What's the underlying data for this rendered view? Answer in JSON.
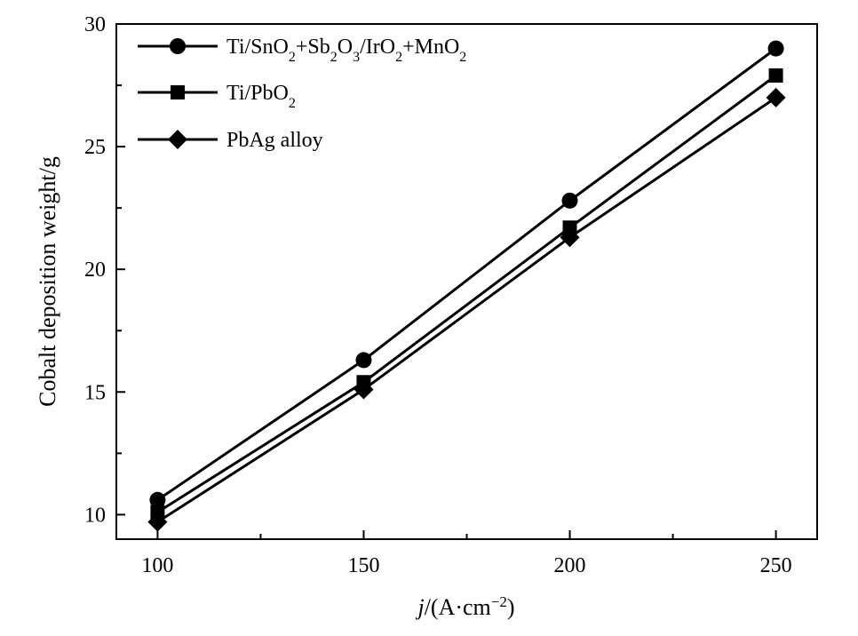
{
  "chart_data": {
    "type": "line",
    "x": [
      100,
      150,
      200,
      250
    ],
    "xlim": [
      90,
      260
    ],
    "ylim": [
      9,
      30
    ],
    "xticks": [
      100,
      150,
      200,
      250
    ],
    "yticks": [
      10,
      15,
      20,
      25,
      30
    ],
    "xlabel": {
      "italic": "j",
      "rest": "/(A·cm",
      "sup": "−2",
      "end": ")"
    },
    "ylabel": "Cobalt deposition weight/g",
    "legend_position": "top-left",
    "series": [
      {
        "name": "Ti/SnO2+Sb2O3/IrO2+MnO2",
        "name_parts": [
          {
            "t": "Ti/SnO"
          },
          {
            "t": "2",
            "sub": true
          },
          {
            "t": "+Sb"
          },
          {
            "t": "2",
            "sub": true
          },
          {
            "t": "O"
          },
          {
            "t": "3",
            "sub": true
          },
          {
            "t": "/IrO"
          },
          {
            "t": "2",
            "sub": true
          },
          {
            "t": "+MnO"
          },
          {
            "t": "2",
            "sub": true
          }
        ],
        "marker": "circle",
        "values": [
          10.6,
          16.3,
          22.8,
          29.0
        ]
      },
      {
        "name": "Ti/PbO2",
        "name_parts": [
          {
            "t": "Ti/PbO"
          },
          {
            "t": "2",
            "sub": true
          }
        ],
        "marker": "square",
        "values": [
          10.1,
          15.4,
          21.7,
          27.9
        ]
      },
      {
        "name": "PbAg alloy",
        "name_parts": [
          {
            "t": "PbAg alloy"
          }
        ],
        "marker": "diamond",
        "values": [
          9.7,
          15.1,
          21.3,
          27.0
        ]
      }
    ],
    "colors": {
      "line": "#000000",
      "marker": "#000000"
    }
  }
}
